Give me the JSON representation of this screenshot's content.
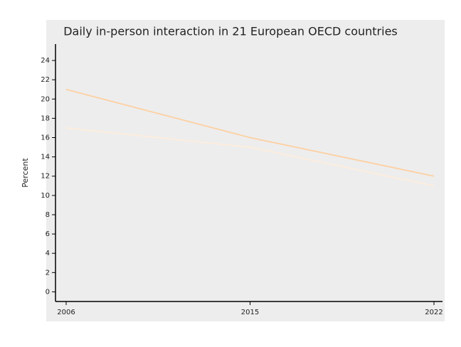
{
  "chart_data": {
    "type": "line",
    "title": "Daily in-person interaction in 21 European OECD countries",
    "y_label": "Percent",
    "categories": [
      "2006",
      "2015",
      "2022"
    ],
    "series": [
      {
        "color": "#fdd0a2",
        "values": [
          21,
          16,
          12
        ]
      },
      {
        "color": "#feeddc",
        "values": [
          17,
          15,
          11
        ]
      }
    ],
    "ylim": [
      -1,
      25.7
    ],
    "yticks": [
      0,
      2,
      4,
      6,
      8,
      10,
      12,
      14,
      16,
      18,
      20,
      22,
      24
    ]
  }
}
